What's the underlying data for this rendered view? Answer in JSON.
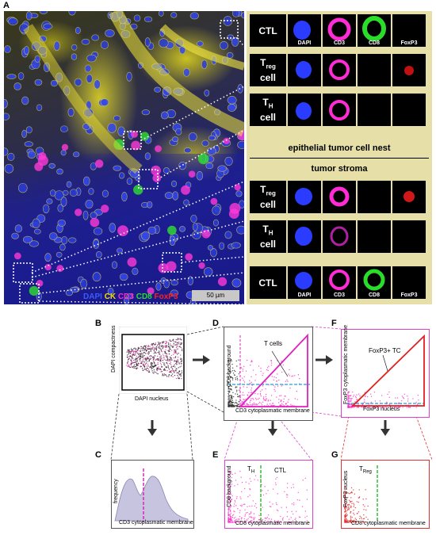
{
  "panels": {
    "A": "A",
    "B": "B",
    "C": "C",
    "D": "D",
    "E": "E",
    "F": "F",
    "G": "G"
  },
  "legend": {
    "dapi": "DAPI",
    "ck": "CK",
    "cd3": "CD3",
    "cd8": "CD8",
    "foxp3": "FoxP3",
    "colors": {
      "dapi": "#3a5cff",
      "ck": "#f0e000",
      "cd3": "#ff2bd4",
      "cd8": "#2bdd2b",
      "foxp3": "#ff2020"
    }
  },
  "scale_bar": "50 µm",
  "insets": {
    "rows": [
      {
        "label": "CTL",
        "tiles": [
          "DAPI",
          "CD3",
          "CD8",
          "FoxP3"
        ]
      },
      {
        "label_main": "T",
        "label_sub": "reg",
        "label_tail": "cell",
        "tiles": [
          "",
          "",
          "",
          ""
        ]
      },
      {
        "label_main": "T",
        "label_sub": "H",
        "label_tail": "cell",
        "tiles": [
          "",
          "",
          "",
          ""
        ]
      },
      {
        "label_main": "T",
        "label_sub": "reg",
        "label_tail": "cell",
        "tiles": [
          "",
          "",
          "",
          ""
        ]
      },
      {
        "label_main": "T",
        "label_sub": "H",
        "label_tail": "cell",
        "tiles": [
          "",
          "",
          "",
          ""
        ]
      },
      {
        "label": "CTL",
        "tiles": [
          "DAPI",
          "CD3",
          "CD8",
          "FoxP3"
        ]
      }
    ],
    "section_epithelial": "epithelial tumor cell nest",
    "section_stroma": "tumor stroma"
  },
  "plots": {
    "B": {
      "ylabel": "DAPI compactness",
      "xlabel": "DAPI nucleus"
    },
    "C": {
      "ylabel": "frequency",
      "xlabel": "CD3 cytoplasmatic membrane"
    },
    "D": {
      "ylabel": "CD3 background",
      "xlabel": "CD3 cytoplasmatic membrane",
      "annotation": "T cells"
    },
    "E": {
      "ylabel": "CD8 background",
      "xlabel": "CD8 cytoplasmatic membrane",
      "ann_th_main": "T",
      "ann_th_sub": "H",
      "ann_ctl": "CTL"
    },
    "F": {
      "ylabel": "FoxP3 cytoplasmatic membrane",
      "xlabel": "FoxP3 nucleus",
      "annotation": "FoxP3+ TC"
    },
    "G": {
      "ylabel": "FoxP3 nucleus",
      "xlabel": "CD8 cytoplasmatic membrane",
      "ann_main": "T",
      "ann_sub": "Reg"
    }
  }
}
